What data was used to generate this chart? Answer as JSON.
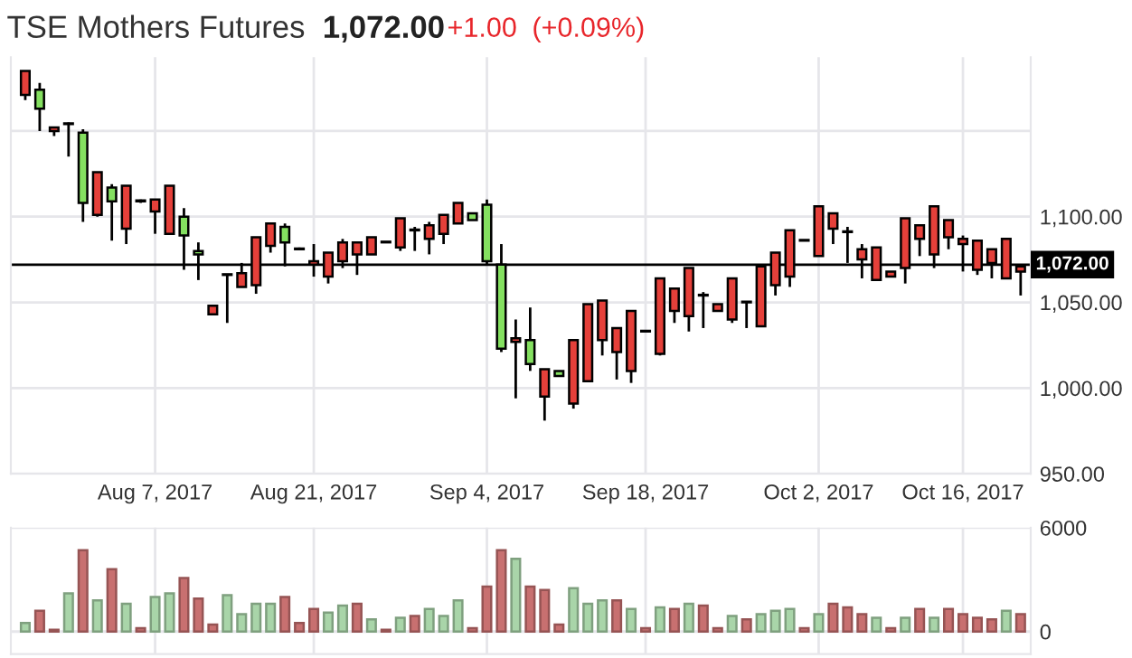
{
  "chart_data": [
    {
      "type": "candlestick",
      "title": "TSE Mothers Futures",
      "annotations": [
        "1,072.00",
        "+1.00",
        "(+0.09%)"
      ],
      "categories": [
        null,
        null,
        null,
        null,
        null,
        null,
        null,
        null,
        null,
        "Aug 7, 2017",
        null,
        null,
        null,
        null,
        null,
        null,
        null,
        null,
        null,
        null,
        "Aug 21, 2017",
        null,
        null,
        null,
        null,
        null,
        null,
        null,
        null,
        null,
        null,
        null,
        "Sep 4, 2017",
        null,
        null,
        null,
        null,
        null,
        null,
        null,
        null,
        null,
        null,
        "Sep 18, 2017",
        null,
        null,
        null,
        null,
        null,
        null,
        null,
        null,
        null,
        null,
        null,
        "Oct 2, 2017",
        null,
        null,
        null,
        null,
        null,
        null,
        null,
        null,
        null,
        "Oct 16, 2017",
        null,
        null,
        null,
        null
      ],
      "ohlc": [
        [
          1171,
          1185,
          1168,
          1185
        ],
        [
          1174,
          1178,
          1150,
          1163
        ],
        [
          1150,
          1152,
          1147,
          1152
        ],
        [
          1154,
          1155,
          1135,
          1154
        ],
        [
          1149,
          1151,
          1097,
          1108
        ],
        [
          1101,
          1126,
          1100,
          1126
        ],
        [
          1117,
          1119,
          1086,
          1109
        ],
        [
          1093,
          1118,
          1084,
          1118
        ],
        [
          1109,
          1110,
          1108,
          1109
        ],
        [
          1103,
          1110,
          1090,
          1110
        ],
        [
          1090,
          1118,
          1090,
          1118
        ],
        [
          1100,
          1105,
          1069,
          1089
        ],
        [
          1080,
          1085,
          1063,
          1078
        ],
        [
          1043,
          1048,
          1043,
          1048
        ],
        [
          1066,
          1066,
          1038,
          1066
        ],
        [
          1059,
          1073,
          1059,
          1067
        ],
        [
          1060,
          1088,
          1055,
          1088
        ],
        [
          1083,
          1096,
          1079,
          1096
        ],
        [
          1094,
          1096,
          1071,
          1085
        ],
        [
          1081,
          1082,
          1081,
          1081
        ],
        [
          1072,
          1084,
          1065,
          1074
        ],
        [
          1065,
          1079,
          1061,
          1079
        ],
        [
          1074,
          1087,
          1070,
          1085
        ],
        [
          1078,
          1085,
          1066,
          1085
        ],
        [
          1078,
          1088,
          1078,
          1088
        ],
        [
          1085,
          1085,
          1085,
          1085
        ],
        [
          1082,
          1099,
          1080,
          1099
        ],
        [
          1092,
          1094,
          1080,
          1092
        ],
        [
          1087,
          1097,
          1078,
          1095
        ],
        [
          1090,
          1101,
          1084,
          1101
        ],
        [
          1096,
          1108,
          1096,
          1108
        ],
        [
          1102,
          1102,
          1098,
          1098
        ],
        [
          1107,
          1110,
          1072,
          1074
        ],
        [
          1072,
          1084,
          1021,
          1023
        ],
        [
          1027,
          1040,
          994,
          1029
        ],
        [
          1028,
          1047,
          1010,
          1014
        ],
        [
          995,
          1011,
          981,
          1011
        ],
        [
          1010,
          1010,
          1007,
          1007
        ],
        [
          991,
          1028,
          988,
          1028
        ],
        [
          1004,
          1049,
          1004,
          1049
        ],
        [
          1028,
          1051,
          1019,
          1051
        ],
        [
          1021,
          1035,
          1005,
          1035
        ],
        [
          1010,
          1045,
          1003,
          1045
        ],
        [
          1033,
          1033,
          1033,
          1033
        ],
        [
          1020,
          1064,
          1019,
          1064
        ],
        [
          1045,
          1058,
          1038,
          1058
        ],
        [
          1042,
          1070,
          1033,
          1070
        ],
        [
          1054,
          1056,
          1035,
          1054
        ],
        [
          1045,
          1049,
          1045,
          1049
        ],
        [
          1040,
          1064,
          1038,
          1064
        ],
        [
          1050,
          1050,
          1035,
          1050
        ],
        [
          1036,
          1071,
          1036,
          1071
        ],
        [
          1060,
          1079,
          1054,
          1079
        ],
        [
          1065,
          1092,
          1059,
          1092
        ],
        [
          1086,
          1086,
          1086,
          1086
        ],
        [
          1077,
          1106,
          1077,
          1106
        ],
        [
          1093,
          1102,
          1084,
          1102
        ],
        [
          1091,
          1094,
          1073,
          1091
        ],
        [
          1075,
          1084,
          1064,
          1081
        ],
        [
          1063,
          1082,
          1063,
          1082
        ],
        [
          1065,
          1068,
          1065,
          1068
        ],
        [
          1070,
          1099,
          1061,
          1099
        ],
        [
          1087,
          1095,
          1077,
          1095
        ],
        [
          1078,
          1106,
          1070,
          1106
        ],
        [
          1088,
          1098,
          1081,
          1098
        ],
        [
          1084,
          1089,
          1068,
          1087
        ],
        [
          1069,
          1086,
          1066,
          1086
        ],
        [
          1073,
          1081,
          1064,
          1081
        ],
        [
          1064,
          1087,
          1064,
          1087
        ],
        [
          1068,
          1071,
          1054,
          1071
        ]
      ],
      "colors": [
        "#e5403a",
        "#84e060",
        "#e5403a",
        "#e5403a",
        "#84e060",
        "#e5403a",
        "#84e060",
        "#e5403a",
        "#e5403a",
        "#e5403a",
        "#e5403a",
        "#84e060",
        "#84e060",
        "#e5403a",
        "#e5403a",
        "#e5403a",
        "#e5403a",
        "#e5403a",
        "#84e060",
        "#e5403a",
        "#e5403a",
        "#e5403a",
        "#e5403a",
        "#e5403a",
        "#e5403a",
        "#e5403a",
        "#e5403a",
        "#e5403a",
        "#e5403a",
        "#e5403a",
        "#e5403a",
        "#84e060",
        "#84e060",
        "#84e060",
        "#e5403a",
        "#84e060",
        "#e5403a",
        "#84e060",
        "#e5403a",
        "#e5403a",
        "#e5403a",
        "#e5403a",
        "#e5403a",
        "#e5403a",
        "#e5403a",
        "#e5403a",
        "#e5403a",
        "#e5403a",
        "#e5403a",
        "#e5403a",
        "#e5403a",
        "#e5403a",
        "#e5403a",
        "#e5403a",
        "#e5403a",
        "#e5403a",
        "#e5403a",
        "#e5403a",
        "#e5403a",
        "#e5403a",
        "#e5403a",
        "#e5403a",
        "#e5403a",
        "#e5403a",
        "#e5403a",
        "#e5403a",
        "#e5403a",
        "#e5403a",
        "#e5403a",
        "#e5403a"
      ],
      "ylim": [
        950,
        1193
      ],
      "yticks": [
        {
          "value": 950,
          "label": "950.00"
        },
        {
          "value": 1000,
          "label": "1,000.00"
        },
        {
          "value": 1050,
          "label": "1,050.00"
        },
        {
          "value": 1100,
          "label": "1,100.00"
        },
        {
          "value": 1150,
          "label": null
        }
      ],
      "ref_lines": [
        {
          "axis": "y",
          "value": 1072,
          "label": "1,072.00",
          "color": "#000000"
        }
      ],
      "grid": true
    },
    {
      "type": "bar",
      "tick_labels": "y",
      "categories": [
        null,
        null,
        null,
        null,
        null,
        null,
        null,
        null,
        null,
        null,
        null,
        null,
        null,
        null,
        null,
        null,
        null,
        null,
        null,
        null,
        null,
        null,
        null,
        null,
        null,
        null,
        null,
        null,
        null,
        null,
        null,
        null,
        null,
        null,
        null,
        null,
        null,
        null,
        null,
        null,
        null,
        null,
        null,
        null,
        null,
        null,
        null,
        null,
        null,
        null,
        null,
        null,
        null,
        null,
        null,
        null,
        null,
        null,
        null,
        null,
        null,
        null,
        null,
        null,
        null,
        null,
        null,
        null,
        null,
        null
      ],
      "values": [
        500,
        1200,
        100,
        2200,
        4700,
        1800,
        3600,
        1600,
        200,
        2000,
        2200,
        3100,
        1900,
        400,
        2100,
        1000,
        1600,
        1600,
        2000,
        500,
        1300,
        1100,
        1500,
        1600,
        700,
        100,
        800,
        900,
        1300,
        900,
        1800,
        200,
        2600,
        4700,
        4200,
        2600,
        2400,
        400,
        2500,
        1600,
        1800,
        1800,
        1300,
        200,
        1400,
        1300,
        1600,
        1500,
        200,
        900,
        700,
        1000,
        1200,
        1300,
        200,
        1000,
        1600,
        1400,
        1000,
        800,
        200,
        800,
        1300,
        800,
        1300,
        1000,
        800,
        700,
        1200,
        1000
      ],
      "colors": [
        "#a9d5a9",
        "#c87070",
        "#c87070",
        "#a9d5a9",
        "#c87070",
        "#a9d5a9",
        "#c87070",
        "#a9d5a9",
        "#c87070",
        "#a9d5a9",
        "#a9d5a9",
        "#c87070",
        "#c87070",
        "#c87070",
        "#a9d5a9",
        "#a9d5a9",
        "#a9d5a9",
        "#a9d5a9",
        "#c87070",
        "#c87070",
        "#c87070",
        "#a9d5a9",
        "#a9d5a9",
        "#c87070",
        "#a9d5a9",
        "#c87070",
        "#a9d5a9",
        "#c87070",
        "#a9d5a9",
        "#a9d5a9",
        "#a9d5a9",
        "#c87070",
        "#c87070",
        "#c87070",
        "#a9d5a9",
        "#c87070",
        "#c87070",
        "#c87070",
        "#a9d5a9",
        "#a9d5a9",
        "#a9d5a9",
        "#c87070",
        "#a9d5a9",
        "#c87070",
        "#a9d5a9",
        "#c87070",
        "#a9d5a9",
        "#c87070",
        "#c87070",
        "#a9d5a9",
        "#c87070",
        "#a9d5a9",
        "#a9d5a9",
        "#a9d5a9",
        "#c87070",
        "#a9d5a9",
        "#c87070",
        "#c87070",
        "#c87070",
        "#a9d5a9",
        "#c87070",
        "#a9d5a9",
        "#c87070",
        "#a9d5a9",
        "#c87070",
        "#c87070",
        "#c87070",
        "#c87070",
        "#a9d5a9",
        "#c87070"
      ],
      "ylim": [
        -1300,
        6000
      ],
      "yticks": [
        0,
        6000
      ],
      "grid": true
    }
  ]
}
